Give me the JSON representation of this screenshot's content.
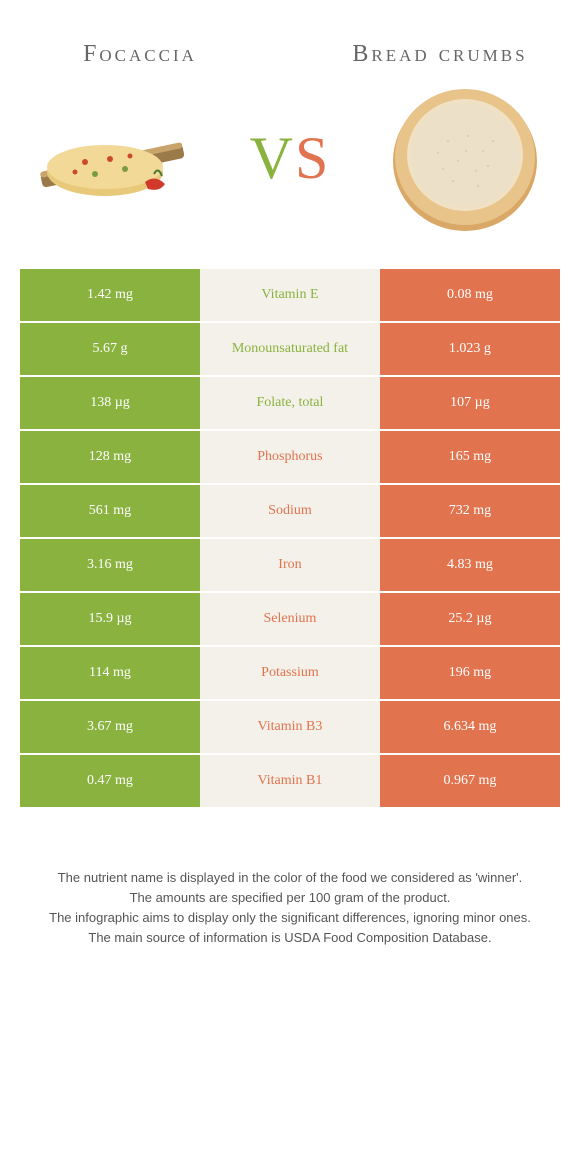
{
  "header": {
    "left_title": "Focaccia",
    "right_title": "Bread crumbs",
    "vs_v": "V",
    "vs_s": "S"
  },
  "colors": {
    "green": "#8ab23f",
    "orange": "#e1734e",
    "mid_bg": "#f3f1e9",
    "white": "#ffffff"
  },
  "table": {
    "rows": [
      {
        "left": "1.42 mg",
        "mid": "Vitamin E",
        "right": "0.08 mg",
        "winner": "green"
      },
      {
        "left": "5.67 g",
        "mid": "Monounsaturated fat",
        "right": "1.023 g",
        "winner": "green"
      },
      {
        "left": "138 µg",
        "mid": "Folate, total",
        "right": "107 µg",
        "winner": "green"
      },
      {
        "left": "128 mg",
        "mid": "Phosphorus",
        "right": "165 mg",
        "winner": "orange"
      },
      {
        "left": "561 mg",
        "mid": "Sodium",
        "right": "732 mg",
        "winner": "orange"
      },
      {
        "left": "3.16 mg",
        "mid": "Iron",
        "right": "4.83 mg",
        "winner": "orange"
      },
      {
        "left": "15.9 µg",
        "mid": "Selenium",
        "right": "25.2 µg",
        "winner": "orange"
      },
      {
        "left": "114 mg",
        "mid": "Potassium",
        "right": "196 mg",
        "winner": "orange"
      },
      {
        "left": "3.67 mg",
        "mid": "Vitamin B3",
        "right": "6.634 mg",
        "winner": "orange"
      },
      {
        "left": "0.47 mg",
        "mid": "Vitamin B1",
        "right": "0.967 mg",
        "winner": "orange"
      }
    ]
  },
  "footer": {
    "line1": "The nutrient name is displayed in the color of the food we considered as 'winner'.",
    "line2": "The amounts are specified per 100 gram of the product.",
    "line3": "The infographic aims to display only the significant differences, ignoring minor ones.",
    "line4": "The main source of information is USDA Food Composition Database."
  }
}
